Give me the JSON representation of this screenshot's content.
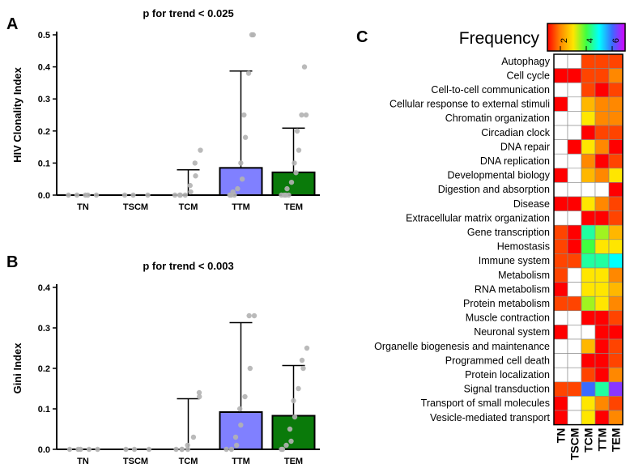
{
  "panel_labels": {
    "a": "A",
    "b": "B",
    "c": "C"
  },
  "colors": {
    "TN": "#ffffff",
    "TSCM": "#ffffff",
    "TCM": "#ffffff",
    "TTM": "#8080ff",
    "TEM": "#0a7a0a",
    "points": "#b3b3b3"
  },
  "chart_data": [
    {
      "type": "bar",
      "panel": "A",
      "title": "p for trend < 0.025",
      "xlabel": "",
      "ylabel": "HIV Clonality Index",
      "categories": [
        "TN",
        "TSCM",
        "TCM",
        "TTM",
        "TEM"
      ],
      "values": [
        0,
        0,
        0,
        0.085,
        0.071
      ],
      "error_upper": [
        0,
        0,
        0.079,
        0.387,
        0.209
      ],
      "ylim": [
        0,
        0.5
      ],
      "yticks": [
        "0.0",
        "0.1",
        "0.2",
        "0.3",
        "0.4",
        "0.5"
      ],
      "points": [
        [
          0,
          0,
          0,
          0,
          0
        ],
        [
          0,
          0,
          0
        ],
        [
          0,
          0,
          0,
          0,
          0.01,
          0.03,
          0.06,
          0.1,
          0.14
        ],
        [
          0,
          0,
          0,
          0.01,
          0.02,
          0.05,
          0.1,
          0.18,
          0.25,
          0.38,
          0.5,
          0.5
        ],
        [
          0,
          0,
          0,
          0,
          0.02,
          0.04,
          0.07,
          0.1,
          0.14,
          0.2,
          0.25,
          0.25,
          0.4
        ]
      ]
    },
    {
      "type": "bar",
      "panel": "B",
      "title": "p for trend < 0.003",
      "xlabel": "",
      "ylabel": "Gini Index",
      "categories": [
        "TN",
        "TSCM",
        "TCM",
        "TTM",
        "TEM"
      ],
      "values": [
        0,
        0,
        0,
        0.092,
        0.083
      ],
      "error_upper": [
        0,
        0,
        0.125,
        0.313,
        0.207
      ],
      "ylim": [
        0,
        0.4
      ],
      "yticks": [
        "0.0",
        "0.1",
        "0.2",
        "0.3",
        "0.4"
      ],
      "points": [
        [
          0,
          0,
          0,
          0,
          0
        ],
        [
          0,
          0,
          0
        ],
        [
          0,
          0,
          0,
          0,
          0.01,
          0.03,
          0.13,
          0.14
        ],
        [
          0,
          0,
          0.01,
          0.03,
          0.06,
          0.1,
          0.13,
          0.2,
          0.33,
          0.33
        ],
        [
          0,
          0,
          0.01,
          0.02,
          0.05,
          0.08,
          0.12,
          0.15,
          0.2,
          0.22,
          0.25
        ]
      ]
    },
    {
      "type": "heatmap",
      "panel": "C",
      "legend_title": "Frequency",
      "legend_ticks": [
        "2",
        "4",
        "6"
      ],
      "scale_range": [
        1,
        7
      ],
      "scale_colors": [
        "#ff0000",
        "#ff8800",
        "#ffe600",
        "#40ff40",
        "#00ffff",
        "#3a6bff",
        "#d800ff"
      ],
      "columns": [
        "TN",
        "TSCM",
        "TCM",
        "TTM",
        "TEM"
      ],
      "rows": [
        "Autophagy",
        "Cell cycle",
        "Cell-to-cell communication",
        "Cellular response to external stimuli",
        "Chromatin organization",
        "Circadian clock",
        "DNA repair",
        "DNA replication",
        "Developmental biology",
        "Digestion and absorption",
        "Disease",
        "Extracellular matrix organization",
        "Gene transcription",
        "Hemostasis",
        "Immune system",
        "Metabolism",
        "RNA metabolism",
        "Protein metabolism",
        "Muscle contraction",
        "Neuronal system",
        "Organelle biogenesis and maintenance",
        "Programmed cell death",
        "Protein localization",
        "Signal transduction",
        "Transport of small molecules",
        "Vesicle-mediated transport"
      ],
      "values": [
        [
          null,
          null,
          1.5,
          1.5,
          1.5
        ],
        [
          1,
          1,
          1.5,
          1.5,
          2
        ],
        [
          null,
          null,
          1.5,
          1,
          1.5
        ],
        [
          1,
          null,
          2.5,
          2,
          2
        ],
        [
          null,
          null,
          3,
          2,
          2
        ],
        [
          null,
          null,
          1,
          1.5,
          1.5
        ],
        [
          null,
          1,
          3,
          2,
          1
        ],
        [
          null,
          null,
          2,
          1,
          1.5
        ],
        [
          1,
          null,
          2.5,
          2,
          3
        ],
        [
          null,
          null,
          null,
          null,
          1
        ],
        [
          1,
          1,
          3,
          2,
          1.5
        ],
        [
          null,
          null,
          1,
          1,
          1.5
        ],
        [
          1.5,
          1,
          4.5,
          3.5,
          2.5
        ],
        [
          1.5,
          1,
          4,
          3,
          3
        ],
        [
          1.5,
          1.5,
          4.5,
          4.5,
          5
        ],
        [
          1.5,
          null,
          3,
          3,
          2
        ],
        [
          1,
          null,
          3,
          3,
          2.5
        ],
        [
          1.5,
          1.5,
          3.5,
          3,
          2
        ],
        [
          null,
          null,
          1,
          1,
          1.5
        ],
        [
          1,
          null,
          null,
          1,
          1
        ],
        [
          null,
          null,
          2.5,
          1,
          1.5
        ],
        [
          null,
          null,
          1,
          1,
          1.5
        ],
        [
          null,
          null,
          1.5,
          1,
          2
        ],
        [
          1.5,
          1.5,
          6,
          4.5,
          6.5
        ],
        [
          1,
          null,
          3,
          2,
          1.5
        ],
        [
          1,
          null,
          3,
          1,
          2
        ]
      ]
    }
  ]
}
